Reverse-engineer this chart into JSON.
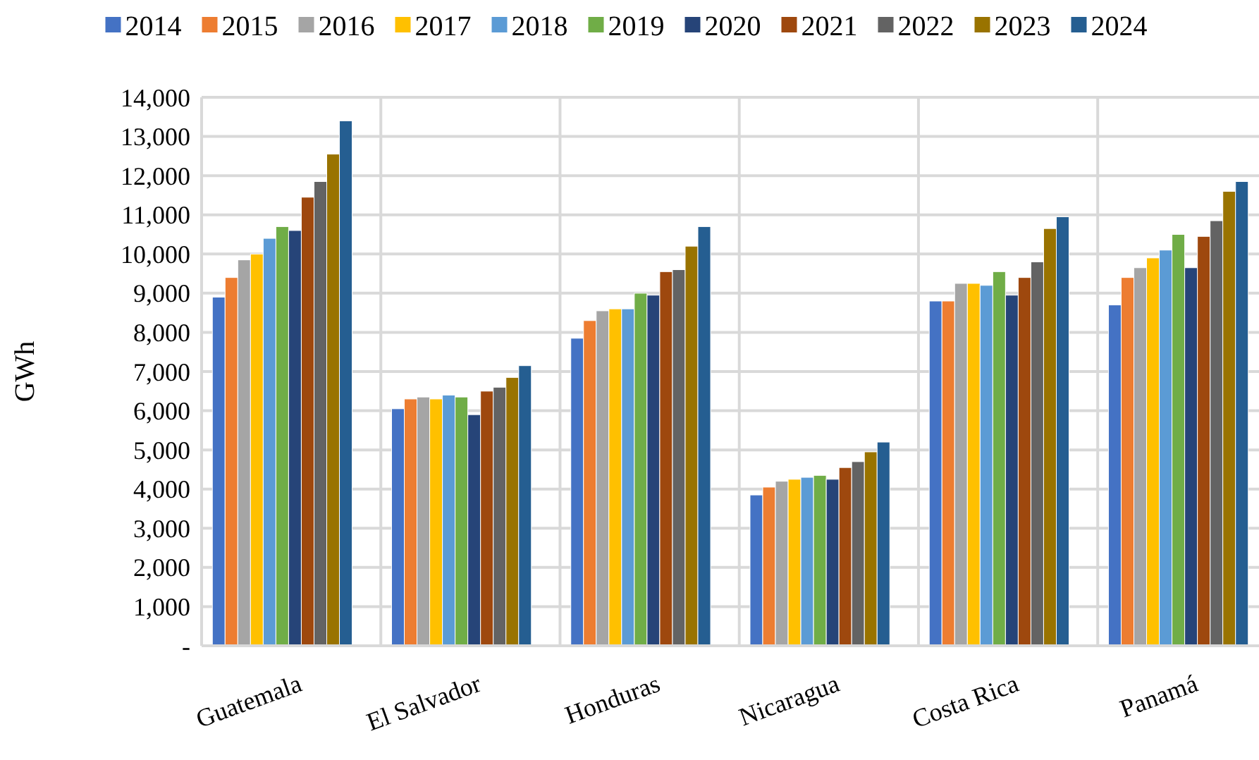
{
  "chart_data": {
    "type": "bar",
    "ylabel": "GWh",
    "categories": [
      "Guatemala",
      "El Salvador",
      "Honduras",
      "Nicaragua",
      "Costa Rica",
      "Panamá"
    ],
    "series": [
      {
        "name": "2014",
        "color": "#4472c4",
        "values": [
          8900,
          6050,
          7850,
          3850,
          8800,
          8700
        ]
      },
      {
        "name": "2015",
        "color": "#ed7d31",
        "values": [
          9400,
          6300,
          8300,
          4050,
          8800,
          9400
        ]
      },
      {
        "name": "2016",
        "color": "#a5a5a5",
        "values": [
          9850,
          6350,
          8550,
          4200,
          9250,
          9650
        ]
      },
      {
        "name": "2017",
        "color": "#ffc000",
        "values": [
          10000,
          6300,
          8600,
          4250,
          9250,
          9900
        ]
      },
      {
        "name": "2018",
        "color": "#5b9bd5",
        "values": [
          10400,
          6400,
          8600,
          4300,
          9200,
          10100
        ]
      },
      {
        "name": "2019",
        "color": "#70ad47",
        "values": [
          10700,
          6350,
          9000,
          4350,
          9550,
          10500
        ]
      },
      {
        "name": "2020",
        "color": "#264478",
        "values": [
          10600,
          5900,
          8950,
          4250,
          8950,
          9650
        ]
      },
      {
        "name": "2021",
        "color": "#9e480e",
        "values": [
          11450,
          6500,
          9550,
          4550,
          9400,
          10450
        ]
      },
      {
        "name": "2022",
        "color": "#636363",
        "values": [
          11850,
          6600,
          9600,
          4700,
          9800,
          10850
        ]
      },
      {
        "name": "2023",
        "color": "#997300",
        "values": [
          12550,
          6850,
          10200,
          4950,
          10650,
          11600
        ]
      },
      {
        "name": "2024",
        "color": "#255e91",
        "values": [
          13400,
          7150,
          10700,
          5200,
          10950,
          11850
        ]
      }
    ],
    "ylim": [
      0,
      14000
    ],
    "yticks": [
      {
        "value": 0,
        "label": "-"
      },
      {
        "value": 1000,
        "label": "1,000"
      },
      {
        "value": 2000,
        "label": "2,000"
      },
      {
        "value": 3000,
        "label": "3,000"
      },
      {
        "value": 4000,
        "label": "4,000"
      },
      {
        "value": 5000,
        "label": "5,000"
      },
      {
        "value": 6000,
        "label": "6,000"
      },
      {
        "value": 7000,
        "label": "7,000"
      },
      {
        "value": 8000,
        "label": "8,000"
      },
      {
        "value": 9000,
        "label": "9,000"
      },
      {
        "value": 10000,
        "label": "10,000"
      },
      {
        "value": 11000,
        "label": "11,000"
      },
      {
        "value": 12000,
        "label": "12,000"
      },
      {
        "value": 13000,
        "label": "13,000"
      },
      {
        "value": 14000,
        "label": "14,000"
      }
    ],
    "grid": true,
    "legend": "top"
  }
}
